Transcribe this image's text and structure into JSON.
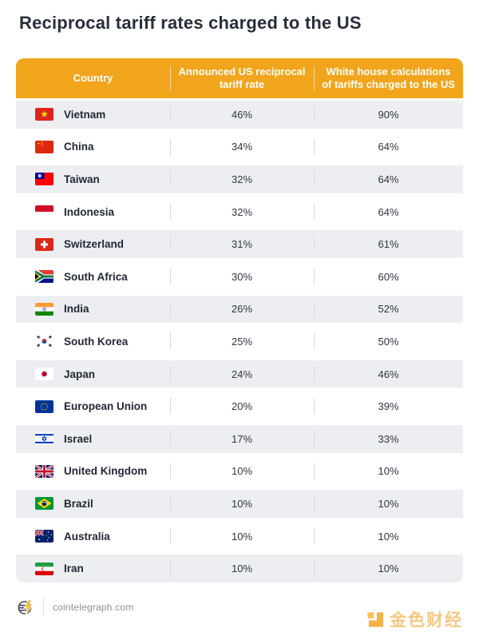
{
  "page": {
    "title": "Reciprocal tariff rates charged to the US"
  },
  "table": {
    "columns": [
      {
        "label": "Country"
      },
      {
        "label": "Announced US reciprocal tariff rate"
      },
      {
        "label": "White house calculations of tariffs charged to the US"
      }
    ],
    "rows": [
      {
        "country": "Vietnam",
        "flag": "vietnam",
        "announced_rate": "46%",
        "white_house_rate": "90%"
      },
      {
        "country": "China",
        "flag": "china",
        "announced_rate": "34%",
        "white_house_rate": "64%"
      },
      {
        "country": "Taiwan",
        "flag": "taiwan",
        "announced_rate": "32%",
        "white_house_rate": "64%"
      },
      {
        "country": "Indonesia",
        "flag": "indonesia",
        "announced_rate": "32%",
        "white_house_rate": "64%"
      },
      {
        "country": "Switzerland",
        "flag": "switzerland",
        "announced_rate": "31%",
        "white_house_rate": "61%"
      },
      {
        "country": "South Africa",
        "flag": "south-africa",
        "announced_rate": "30%",
        "white_house_rate": "60%"
      },
      {
        "country": "India",
        "flag": "india",
        "announced_rate": "26%",
        "white_house_rate": "52%"
      },
      {
        "country": "South Korea",
        "flag": "south-korea",
        "announced_rate": "25%",
        "white_house_rate": "50%"
      },
      {
        "country": "Japan",
        "flag": "japan",
        "announced_rate": "24%",
        "white_house_rate": "46%"
      },
      {
        "country": "European Union",
        "flag": "european-union",
        "announced_rate": "20%",
        "white_house_rate": "39%"
      },
      {
        "country": "Israel",
        "flag": "israel",
        "announced_rate": "17%",
        "white_house_rate": "33%"
      },
      {
        "country": "United Kingdom",
        "flag": "united-kingdom",
        "announced_rate": "10%",
        "white_house_rate": "10%"
      },
      {
        "country": "Brazil",
        "flag": "brazil",
        "announced_rate": "10%",
        "white_house_rate": "10%"
      },
      {
        "country": "Australia",
        "flag": "australia",
        "announced_rate": "10%",
        "white_house_rate": "10%"
      },
      {
        "country": "Iran",
        "flag": "iran",
        "announced_rate": "10%",
        "white_house_rate": "10%"
      }
    ]
  },
  "footer": {
    "source_label": "cointelegraph.com",
    "source_icon": "cointelegraph-coin-icon",
    "brand_label": "金色财经",
    "brand_icon": "jinse-finance-icon"
  },
  "colors": {
    "header_bg": "#F1A51C",
    "header_text": "#FFFFFF",
    "row_alt_bg": "#EDEEF2",
    "title_text": "#272E39",
    "value_text": "#2F3540",
    "country_text": "#222834",
    "footer_text": "#8A909A",
    "brand_gold": "#F4BA62"
  }
}
